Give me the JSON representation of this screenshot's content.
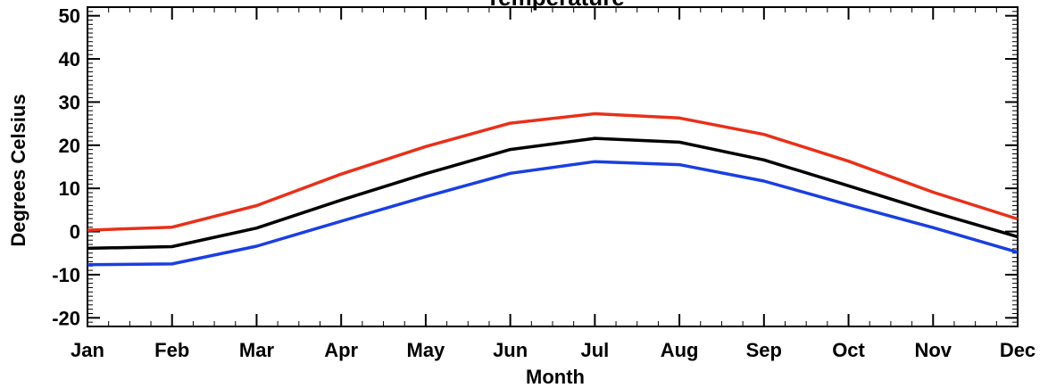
{
  "chart_data": {
    "type": "line",
    "title": "Temperature",
    "xlabel": "Month",
    "ylabel": "Degrees Celsius",
    "categories": [
      "Jan",
      "Feb",
      "Mar",
      "Apr",
      "May",
      "Jun",
      "Jul",
      "Aug",
      "Sep",
      "Oct",
      "Nov",
      "Dec"
    ],
    "ylim": [
      -22,
      52
    ],
    "yticks": [
      -20,
      -10,
      0,
      10,
      20,
      30,
      40,
      50
    ],
    "ytick_labels": [
      "-20",
      "-10",
      "0",
      "10",
      "20",
      "30",
      "40",
      "50"
    ],
    "grid": false,
    "series": [
      {
        "color": "#e8301a",
        "values": [
          0.3,
          1.0,
          6.0,
          13.3,
          19.7,
          25.1,
          27.3,
          26.3,
          22.5,
          16.3,
          9.1,
          2.9
        ]
      },
      {
        "color": "#000000",
        "values": [
          -3.9,
          -3.5,
          0.8,
          7.3,
          13.4,
          19.0,
          21.6,
          20.7,
          16.6,
          10.6,
          4.5,
          -1.2
        ]
      },
      {
        "color": "#1a3fe0",
        "values": [
          -7.7,
          -7.5,
          -3.4,
          2.4,
          8.1,
          13.5,
          16.2,
          15.5,
          11.7,
          6.2,
          0.9,
          -4.8
        ]
      }
    ]
  }
}
